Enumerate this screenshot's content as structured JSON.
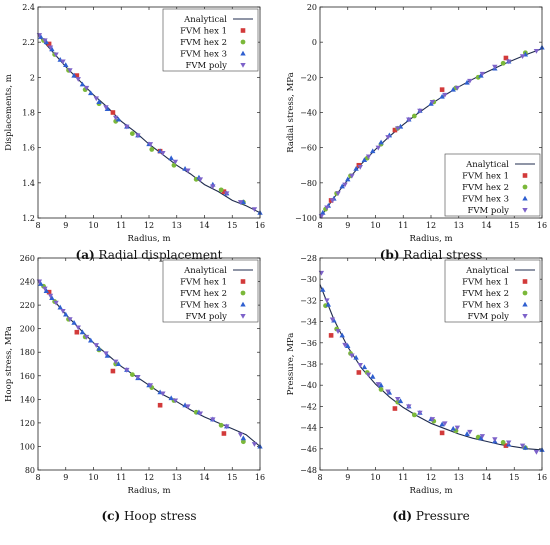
{
  "colors": {
    "analytical": "#1f2b4d",
    "hex1": "#d23a3a",
    "hex2": "#7bb83a",
    "hex3": "#2f5fd0",
    "poly": "#7d62c9"
  },
  "legend": [
    "Analytical",
    "FVM hex 1",
    "FVM hex 2",
    "FVM hex 3",
    "FVM poly"
  ],
  "chart_data": [
    {
      "type": "line",
      "caption_letter": "(a)",
      "caption_text": " Radial displacement",
      "xlabel": "Radius, m",
      "ylabel": "Displacements, m",
      "xlim": [
        8,
        16
      ],
      "ylim": [
        1.2,
        2.4
      ],
      "xticks": [
        "8",
        "9",
        "10",
        "11",
        "12",
        "13",
        "14",
        "15",
        "16"
      ],
      "yticks": [
        "1.2",
        "1.4",
        "1.6",
        "1.8",
        "2",
        "2.2",
        "2.4"
      ],
      "legend_position": "top-right",
      "series": [
        {
          "name": "Analytical",
          "kind": "line",
          "x": [
            8,
            8.5,
            9,
            9.5,
            10,
            10.5,
            11,
            11.5,
            12,
            12.5,
            13,
            13.5,
            14,
            14.5,
            15,
            15.5,
            16
          ],
          "y": [
            2.24,
            2.15,
            2.06,
            1.98,
            1.9,
            1.83,
            1.75,
            1.69,
            1.62,
            1.56,
            1.5,
            1.45,
            1.39,
            1.35,
            1.3,
            1.27,
            1.23
          ]
        },
        {
          "name": "FVM hex 1",
          "kind": "square",
          "x": [
            8.4,
            9.4,
            10.7,
            12.4,
            14.7
          ],
          "y": [
            2.19,
            2.01,
            1.8,
            1.58,
            1.35
          ]
        },
        {
          "name": "FVM hex 2",
          "kind": "circle",
          "x": [
            8.2,
            8.6,
            9.1,
            9.7,
            10.2,
            10.8,
            11.4,
            12.1,
            12.9,
            13.7,
            14.6,
            15.4
          ],
          "y": [
            2.21,
            2.13,
            2.04,
            1.93,
            1.85,
            1.75,
            1.68,
            1.59,
            1.5,
            1.42,
            1.36,
            1.29
          ]
        },
        {
          "name": "FVM hex 3",
          "kind": "triangle",
          "x": [
            8.1,
            8.3,
            8.5,
            8.8,
            9,
            9.3,
            9.6,
            9.9,
            10.2,
            10.5,
            10.9,
            11.2,
            11.6,
            12,
            12.4,
            12.8,
            13.3,
            13.8,
            14.3,
            14.8,
            15.4,
            16
          ],
          "y": [
            2.23,
            2.2,
            2.16,
            2.1,
            2.07,
            2.01,
            1.96,
            1.91,
            1.86,
            1.82,
            1.76,
            1.72,
            1.67,
            1.62,
            1.58,
            1.54,
            1.48,
            1.43,
            1.39,
            1.34,
            1.29,
            1.23
          ]
        },
        {
          "name": "FVM poly",
          "kind": "triangle-down",
          "x": [
            8.05,
            8.25,
            8.45,
            8.65,
            8.9,
            9.15,
            9.45,
            9.75,
            10.1,
            10.45,
            10.8,
            11.2,
            11.6,
            12.05,
            12.5,
            12.95,
            13.4,
            13.85,
            14.3,
            14.8,
            15.3,
            15.8
          ],
          "y": [
            2.24,
            2.21,
            2.17,
            2.13,
            2.09,
            2.04,
            1.99,
            1.94,
            1.88,
            1.83,
            1.77,
            1.72,
            1.67,
            1.62,
            1.57,
            1.52,
            1.47,
            1.42,
            1.38,
            1.34,
            1.29,
            1.25
          ]
        }
      ]
    },
    {
      "type": "line",
      "caption_letter": "(b)",
      "caption_text": " Radial stress",
      "xlabel": "Radius, m",
      "ylabel": "Radial stress, MPa",
      "xlim": [
        8,
        16
      ],
      "ylim": [
        -100,
        20
      ],
      "xticks": [
        "8",
        "9",
        "10",
        "11",
        "12",
        "13",
        "14",
        "15",
        "16"
      ],
      "yticks": [
        "−100",
        "−80",
        "−60",
        "−40",
        "−20",
        "0",
        "20"
      ],
      "legend_position": "bottom-right",
      "series": [
        {
          "name": "Analytical",
          "kind": "line",
          "x": [
            8,
            8.5,
            9,
            9.5,
            10,
            10.5,
            11,
            11.5,
            12,
            12.5,
            13,
            13.5,
            14,
            14.5,
            15,
            15.5,
            16
          ],
          "y": [
            -100,
            -88.5,
            -78.3,
            -69.2,
            -61,
            -53.6,
            -46.9,
            -40.8,
            -35.2,
            -30.1,
            -25.4,
            -21.1,
            -17,
            -13.3,
            -9.9,
            -6.7,
            -3.7
          ]
        },
        {
          "name": "FVM hex 1",
          "kind": "square",
          "x": [
            8.4,
            9.4,
            10.7,
            12.4,
            14.7
          ],
          "y": [
            -90,
            -70,
            -50,
            -27,
            -9
          ]
        },
        {
          "name": "FVM hex 2",
          "kind": "circle",
          "x": [
            8.2,
            8.6,
            9.1,
            9.7,
            10.2,
            10.8,
            11.4,
            12.1,
            12.9,
            13.7,
            14.6,
            15.4
          ],
          "y": [
            -95,
            -86,
            -76,
            -66,
            -58,
            -49,
            -42,
            -34,
            -26,
            -20,
            -12,
            -6
          ]
        },
        {
          "name": "FVM hex 3",
          "kind": "triangle",
          "x": [
            8.1,
            8.3,
            8.5,
            8.8,
            9,
            9.3,
            9.6,
            9.9,
            10.2,
            10.5,
            10.9,
            11.2,
            11.6,
            12,
            12.4,
            12.8,
            13.3,
            13.8,
            14.3,
            14.8,
            15.4,
            16
          ],
          "y": [
            -97,
            -93,
            -89,
            -82,
            -78,
            -72,
            -67,
            -62,
            -57,
            -53,
            -48,
            -44,
            -39,
            -35,
            -31,
            -27,
            -23,
            -19,
            -15,
            -11,
            -7,
            -3
          ]
        },
        {
          "name": "FVM poly",
          "kind": "triangle-down",
          "x": [
            8.05,
            8.25,
            8.45,
            8.65,
            8.9,
            9.15,
            9.45,
            9.75,
            10.1,
            10.45,
            10.8,
            11.2,
            11.6,
            12.05,
            12.5,
            12.95,
            13.4,
            13.85,
            14.3,
            14.8,
            15.3,
            15.8
          ],
          "y": [
            -99,
            -94,
            -90,
            -86,
            -81,
            -76,
            -71,
            -65,
            -60,
            -54,
            -49,
            -44,
            -39,
            -34,
            -30,
            -26,
            -22,
            -18,
            -14,
            -11,
            -8,
            -5
          ]
        }
      ]
    },
    {
      "type": "line",
      "caption_letter": "(c)",
      "caption_text": " Hoop stress",
      "xlabel": "Radius, m",
      "ylabel": "Hoop stress, MPa",
      "xlim": [
        8,
        16
      ],
      "ylim": [
        80,
        260
      ],
      "xticks": [
        "8",
        "9",
        "10",
        "11",
        "12",
        "13",
        "14",
        "15",
        "16"
      ],
      "yticks": [
        "80",
        "100",
        "120",
        "140",
        "160",
        "180",
        "200",
        "220",
        "240",
        "260"
      ],
      "legend_position": "top-right",
      "series": [
        {
          "name": "Analytical",
          "kind": "line",
          "x": [
            8,
            8.5,
            9,
            9.5,
            10,
            10.5,
            11,
            11.5,
            12,
            12.5,
            13,
            13.5,
            14,
            14.5,
            15,
            15.5,
            16
          ],
          "y": [
            241,
            226,
            212,
            200,
            188,
            178,
            168,
            160,
            152,
            144,
            138,
            131,
            125,
            120,
            115,
            110,
            100
          ]
        },
        {
          "name": "FVM hex 1",
          "kind": "square",
          "x": [
            8.4,
            9.4,
            10.7,
            12.4,
            14.7
          ],
          "y": [
            231,
            197,
            164,
            135,
            111
          ]
        },
        {
          "name": "FVM hex 2",
          "kind": "circle",
          "x": [
            8.2,
            8.6,
            9.1,
            9.7,
            10.2,
            10.8,
            11.4,
            12.1,
            12.9,
            13.7,
            14.6,
            15.4
          ],
          "y": [
            236,
            223,
            208,
            193,
            182,
            170,
            161,
            150,
            139,
            129,
            118,
            104
          ]
        },
        {
          "name": "FVM hex 3",
          "kind": "triangle",
          "x": [
            8.1,
            8.3,
            8.5,
            8.8,
            9,
            9.3,
            9.6,
            9.9,
            10.2,
            10.5,
            10.9,
            11.2,
            11.6,
            12,
            12.4,
            12.8,
            13.3,
            13.8,
            14.3,
            14.8,
            15.4,
            16
          ],
          "y": [
            238,
            232,
            226,
            218,
            212,
            205,
            197,
            190,
            183,
            177,
            170,
            165,
            158,
            152,
            146,
            141,
            135,
            129,
            123,
            117,
            107,
            100
          ]
        },
        {
          "name": "FVM poly",
          "kind": "triangle-down",
          "x": [
            8.05,
            8.25,
            8.45,
            8.65,
            8.9,
            9.15,
            9.45,
            9.75,
            10.1,
            10.45,
            10.8,
            11.2,
            11.6,
            12.05,
            12.5,
            12.95,
            13.4,
            13.85,
            14.3,
            14.8,
            15.3,
            15.8
          ],
          "y": [
            240,
            234,
            228,
            222,
            215,
            208,
            201,
            193,
            186,
            179,
            172,
            165,
            159,
            152,
            145,
            139,
            134,
            128,
            123,
            117,
            110,
            102
          ]
        }
      ]
    },
    {
      "type": "line",
      "caption_letter": "(d)",
      "caption_text": " Pressure",
      "xlabel": "Radius, m",
      "ylabel": "Pressure, MPa",
      "xlim": [
        8,
        16
      ],
      "ylim": [
        -48,
        -28
      ],
      "xticks": [
        "8",
        "9",
        "10",
        "11",
        "12",
        "13",
        "14",
        "15",
        "16"
      ],
      "yticks": [
        "−48",
        "−46",
        "−44",
        "−42",
        "−40",
        "−38",
        "−36",
        "−34",
        "−32",
        "−30",
        "−28"
      ],
      "legend_position": "top-right",
      "series": [
        {
          "name": "Analytical",
          "kind": "line",
          "x": [
            8,
            8.5,
            9,
            9.5,
            10,
            10.5,
            11,
            11.5,
            12,
            12.5,
            13,
            13.5,
            14,
            14.5,
            15,
            15.5,
            16
          ],
          "y": [
            -30.5,
            -33.8,
            -36.4,
            -38.4,
            -39.9,
            -41.1,
            -42.1,
            -42.9,
            -43.6,
            -44.1,
            -44.6,
            -45,
            -45.3,
            -45.6,
            -45.8,
            -46,
            -46.1
          ]
        },
        {
          "name": "FVM hex 1",
          "kind": "square",
          "x": [
            8.4,
            9.4,
            10.7,
            12.4,
            14.7
          ],
          "y": [
            -35.3,
            -38.8,
            -42.2,
            -44.5,
            -45.7
          ]
        },
        {
          "name": "FVM hex 2",
          "kind": "circle",
          "x": [
            8.2,
            8.6,
            9.1,
            9.7,
            10.2,
            10.8,
            11.4,
            12.1,
            12.9,
            13.7,
            14.6,
            15.4
          ],
          "y": [
            -32.5,
            -34.7,
            -37,
            -38.8,
            -40.4,
            -41.6,
            -42.8,
            -43.4,
            -44.3,
            -44.9,
            -45.4,
            -45.9
          ]
        },
        {
          "name": "FVM hex 3",
          "kind": "triangle",
          "x": [
            8.1,
            8.3,
            8.5,
            8.8,
            9,
            9.3,
            9.6,
            9.9,
            10.2,
            10.5,
            10.9,
            11.2,
            11.6,
            12,
            12.4,
            12.8,
            13.3,
            13.8,
            14.3,
            14.8,
            15.4,
            16
          ],
          "y": [
            -31,
            -32.4,
            -33.9,
            -35.3,
            -36.3,
            -37.4,
            -38.3,
            -39.2,
            -40,
            -40.7,
            -41.5,
            -42,
            -42.6,
            -43.2,
            -43.7,
            -44.1,
            -44.6,
            -45,
            -45.3,
            -45.6,
            -45.9,
            -46.1
          ]
        },
        {
          "name": "FVM poly",
          "kind": "triangle-down",
          "x": [
            8.05,
            8.25,
            8.45,
            8.65,
            8.9,
            9.15,
            9.45,
            9.75,
            10.1,
            10.45,
            10.8,
            11.2,
            11.6,
            12.05,
            12.5,
            12.95,
            13.4,
            13.85,
            14.3,
            14.8,
            15.3,
            15.8
          ],
          "y": [
            -29.4,
            -32,
            -33.8,
            -34.9,
            -36.2,
            -37.2,
            -38.1,
            -39,
            -39.9,
            -40.6,
            -41.3,
            -42,
            -42.6,
            -43.2,
            -43.6,
            -44,
            -44.4,
            -44.8,
            -45.1,
            -45.4,
            -45.7,
            -46.3
          ]
        }
      ]
    }
  ]
}
